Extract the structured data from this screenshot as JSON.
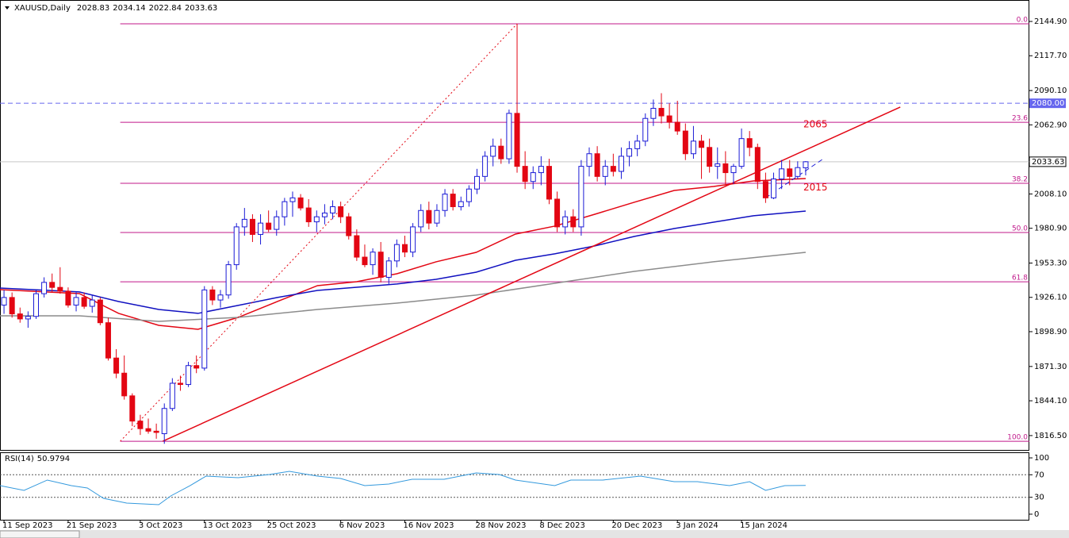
{
  "chart_data": {
    "type": "candlestick",
    "symbol": "XAUUSD,Daily",
    "up_color": "#1a1ad6",
    "down_color": "#e30613",
    "xlim": [
      -0.5,
      127.9
    ],
    "ylim": [
      1804.5,
      2161.9
    ],
    "xticks": [
      {
        "value": 0,
        "label": "11 Sep 2023"
      },
      {
        "value": 8,
        "label": "21 Sep 2023"
      },
      {
        "value": 17,
        "label": "3 Oct 2023"
      },
      {
        "value": 25,
        "label": "13 Oct 2023"
      },
      {
        "value": 33,
        "label": "25 Oct 2023"
      },
      {
        "value": 42,
        "label": "6 Nov 2023"
      },
      {
        "value": 50,
        "label": "16 Nov 2023"
      },
      {
        "value": 59,
        "label": "28 Nov 2023"
      },
      {
        "value": 67,
        "label": "8 Dec 2023"
      },
      {
        "value": 76,
        "label": "20 Dec 2023"
      },
      {
        "value": 84,
        "label": "3 Jan 2024"
      },
      {
        "value": 92,
        "label": "15 Jan 2024"
      }
    ],
    "yticks": [
      {
        "value": 2144.9,
        "label": "2144.90"
      },
      {
        "value": 2117.7,
        "label": "2117.70"
      },
      {
        "value": 2090.1,
        "label": "2090.10"
      },
      {
        "value": 2062.9,
        "label": "2062.90"
      },
      {
        "value": 2008.1,
        "label": "2008.10"
      },
      {
        "value": 1980.9,
        "label": "1980.90"
      },
      {
        "value": 1953.3,
        "label": "1953.30"
      },
      {
        "value": 1926.1,
        "label": "1926.10"
      },
      {
        "value": 1898.9,
        "label": "1898.90"
      },
      {
        "value": 1871.3,
        "label": "1871.30"
      },
      {
        "value": 1844.1,
        "label": "1844.10"
      },
      {
        "value": 1816.5,
        "label": "1816.50"
      }
    ],
    "candles": [
      [
        1920,
        1932,
        1913,
        1926
      ],
      [
        1926,
        1930,
        1910,
        1913
      ],
      [
        1913,
        1918,
        1906,
        1909
      ],
      [
        1909,
        1915,
        1902,
        1911
      ],
      [
        1911,
        1932,
        1909,
        1929
      ],
      [
        1929,
        1942,
        1926,
        1938
      ],
      [
        1938,
        1945,
        1930,
        1934
      ],
      [
        1934,
        1950,
        1929,
        1931
      ],
      [
        1931,
        1934,
        1918,
        1920
      ],
      [
        1920,
        1930,
        1915,
        1926
      ],
      [
        1926,
        1930,
        1917,
        1919
      ],
      [
        1919,
        1928,
        1914,
        1924
      ],
      [
        1924,
        1926,
        1904,
        1906
      ],
      [
        1906,
        1910,
        1876,
        1878
      ],
      [
        1878,
        1885,
        1862,
        1866
      ],
      [
        1866,
        1880,
        1845,
        1848
      ],
      [
        1848,
        1850,
        1824,
        1828
      ],
      [
        1828,
        1833,
        1817,
        1822
      ],
      [
        1822,
        1830,
        1818,
        1820
      ],
      [
        1820,
        1826,
        1814,
        1819
      ],
      [
        1818,
        1842,
        1810,
        1838
      ],
      [
        1838,
        1862,
        1836,
        1858
      ],
      [
        1858,
        1864,
        1852,
        1857
      ],
      [
        1857,
        1875,
        1855,
        1872
      ],
      [
        1872,
        1880,
        1866,
        1870
      ],
      [
        1870,
        1935,
        1868,
        1932
      ],
      [
        1932,
        1935,
        1920,
        1924
      ],
      [
        1924,
        1932,
        1918,
        1928
      ],
      [
        1928,
        1955,
        1925,
        1952
      ],
      [
        1952,
        1985,
        1948,
        1982
      ],
      [
        1982,
        1997,
        1975,
        1988
      ],
      [
        1988,
        1992,
        1970,
        1976
      ],
      [
        1976,
        1992,
        1968,
        1985
      ],
      [
        1985,
        1995,
        1978,
        1980
      ],
      [
        1980,
        1995,
        1975,
        1990
      ],
      [
        1990,
        2005,
        1983,
        2002
      ],
      [
        2002,
        2010,
        1990,
        2005
      ],
      [
        2005,
        2008,
        1995,
        1997
      ],
      [
        1997,
        2004,
        1982,
        1986
      ],
      [
        1986,
        1995,
        1978,
        1990
      ],
      [
        1990,
        2000,
        1984,
        1993
      ],
      [
        1993,
        2003,
        1988,
        1998
      ],
      [
        1998,
        2002,
        1985,
        1990
      ],
      [
        1990,
        1993,
        1972,
        1975
      ],
      [
        1975,
        1980,
        1955,
        1958
      ],
      [
        1958,
        1968,
        1950,
        1952
      ],
      [
        1952,
        1965,
        1944,
        1962
      ],
      [
        1962,
        1970,
        1938,
        1942
      ],
      [
        1942,
        1958,
        1936,
        1955
      ],
      [
        1955,
        1972,
        1950,
        1968
      ],
      [
        1968,
        1975,
        1958,
        1962
      ],
      [
        1962,
        1985,
        1958,
        1982
      ],
      [
        1982,
        2000,
        1978,
        1995
      ],
      [
        1995,
        2002,
        1980,
        1985
      ],
      [
        1985,
        2000,
        1982,
        1995
      ],
      [
        1995,
        2012,
        1990,
        2008
      ],
      [
        2008,
        2012,
        1995,
        1998
      ],
      [
        1998,
        2006,
        1995,
        2002
      ],
      [
        2002,
        2015,
        1998,
        2012
      ],
      [
        2012,
        2028,
        2008,
        2022
      ],
      [
        2022,
        2042,
        2018,
        2038
      ],
      [
        2038,
        2052,
        2030,
        2046
      ],
      [
        2046,
        2052,
        2032,
        2036
      ],
      [
        2036,
        2075,
        2032,
        2072
      ],
      [
        2072,
        2143,
        2025,
        2030
      ],
      [
        2030,
        2042,
        2012,
        2018
      ],
      [
        2018,
        2030,
        2012,
        2025
      ],
      [
        2025,
        2038,
        2015,
        2030
      ],
      [
        2030,
        2036,
        2000,
        2004
      ],
      [
        2004,
        2010,
        1978,
        1982
      ],
      [
        1982,
        1995,
        1976,
        1990
      ],
      [
        1990,
        1996,
        1978,
        1982
      ],
      [
        1982,
        2035,
        1975,
        2030
      ],
      [
        2030,
        2045,
        2022,
        2040
      ],
      [
        2040,
        2046,
        2018,
        2022
      ],
      [
        2022,
        2035,
        2015,
        2030
      ],
      [
        2030,
        2040,
        2022,
        2026
      ],
      [
        2026,
        2045,
        2020,
        2038
      ],
      [
        2038,
        2050,
        2030,
        2044
      ],
      [
        2044,
        2055,
        2038,
        2050
      ],
      [
        2050,
        2072,
        2046,
        2068
      ],
      [
        2068,
        2083,
        2062,
        2076
      ],
      [
        2076,
        2088,
        2064,
        2070
      ],
      [
        2070,
        2080,
        2060,
        2065
      ],
      [
        2065,
        2082,
        2055,
        2058
      ],
      [
        2058,
        2064,
        2035,
        2040
      ],
      [
        2040,
        2062,
        2036,
        2050
      ],
      [
        2050,
        2055,
        2020,
        2045
      ],
      [
        2045,
        2052,
        2025,
        2030
      ],
      [
        2030,
        2045,
        2020,
        2032
      ],
      [
        2032,
        2042,
        2015,
        2025
      ],
      [
        2025,
        2032,
        2016,
        2030
      ],
      [
        2030,
        2060,
        2028,
        2052
      ],
      [
        2052,
        2058,
        2038,
        2045
      ],
      [
        2045,
        2048,
        2012,
        2018
      ],
      [
        2018,
        2025,
        2001,
        2005
      ],
      [
        2005,
        2025,
        2004,
        2020
      ],
      [
        2020,
        2035,
        2012,
        2028
      ],
      [
        2028,
        2035,
        2015,
        2022
      ],
      [
        2022,
        2034,
        2020,
        2029
      ],
      [
        2028.83,
        2034.14,
        2022.84,
        2033.63
      ]
    ],
    "ma_lines": [
      {
        "color": "#e30613",
        "x": [
          -0.5,
          9.4,
          14.3,
          19.3,
          24.2,
          29.2,
          34.1,
          39.1,
          44,
          49,
          53.9,
          58.9,
          63.8,
          68.7,
          73.7,
          78.6,
          83.6,
          88.5,
          93.5,
          100
        ],
        "values": [
          1932.2,
          1929.1,
          1913.4,
          1903.9,
          1900.8,
          1910.2,
          1922.8,
          1935.4,
          1938.5,
          1944.8,
          1954.3,
          1961.8,
          1976.3,
          1982.6,
          1992.0,
          2001.5,
          2010.9,
          2014.0,
          2018.4,
          2020.3
        ]
      },
      {
        "color": "#1010c0",
        "x": [
          -0.5,
          9.4,
          14.3,
          19.3,
          24.2,
          29.2,
          34.1,
          39.1,
          44,
          49,
          53.9,
          58.9,
          63.8,
          68.7,
          73.7,
          78.6,
          83.6,
          88.5,
          93.5,
          100
        ],
        "values": [
          1933.5,
          1930.4,
          1922.8,
          1916.5,
          1913.4,
          1919.7,
          1926.0,
          1931.6,
          1934.1,
          1936.7,
          1940.4,
          1946.1,
          1955.5,
          1960.6,
          1966.9,
          1974.4,
          1980.7,
          1985.7,
          1990.8,
          1994.5
        ]
      },
      {
        "color": "#8c8c8c",
        "x": [
          -0.5,
          9.4,
          19.3,
          29.2,
          39.1,
          49,
          58.9,
          68.7,
          78.6,
          88.5,
          100
        ],
        "values": [
          1911.5,
          1911.5,
          1907.1,
          1910.2,
          1916.5,
          1921.5,
          1927.9,
          1937.3,
          1946.7,
          1954.3,
          1961.8
        ]
      }
    ],
    "trendlines": [
      {
        "color": "#e30613",
        "style": "solid",
        "x": [
          19.8,
          111.8
        ],
        "values": [
          1812,
          2077
        ]
      },
      {
        "color": "#e30613",
        "style": "dotted",
        "x": [
          14.5,
          64
        ],
        "values": [
          1812,
          2143
        ]
      },
      {
        "color": "#1a1ad6",
        "style": "dashed",
        "x": [
          95,
          102.2
        ],
        "values": [
          2005,
          2036
        ]
      }
    ],
    "hlines": [
      {
        "value": 2080,
        "label": "2080.00",
        "color": "#6666ee"
      }
    ],
    "fib": {
      "color": "#c0188a",
      "start": 14.5,
      "high": 2143,
      "low": 1812,
      "levels": [
        {
          "value": 0,
          "label": "0.0"
        },
        23.6,
        38.2,
        {
          "value": 50,
          "label": "50.0"
        },
        61.8,
        {
          "value": 100,
          "label": "100.0"
        }
      ]
    },
    "annotations": [
      {
        "value": 2065,
        "color": "#e30613"
      },
      {
        "value": 2015,
        "color": "#e30613"
      }
    ],
    "rsi": {
      "title": "RSI(14)",
      "color": "#3399dd",
      "ylim": [
        -9.9,
        109.9
      ],
      "yticks": [
        100,
        70,
        30,
        0
      ],
      "dotted_levels": [
        70,
        30
      ],
      "x": [
        -0.5,
        2.5,
        5.4,
        8.4,
        10.4,
        12.4,
        15.3,
        19.3,
        20.8,
        23.2,
        25.2,
        29.2,
        33.1,
        35.6,
        39.1,
        42,
        45,
        48,
        50.9,
        54.9,
        58.9,
        61.8,
        63.8,
        68.7,
        70.7,
        74.7,
        79.4,
        83.6,
        86.5,
        90.5,
        93,
        95,
        97.4,
        100
      ],
      "values": [
        50.7,
        42.3,
        60.6,
        50.7,
        46.5,
        28.2,
        19.7,
        16.9,
        32.4,
        50.7,
        67.6,
        64.8,
        70.4,
        76.1,
        67.6,
        63.4,
        50.7,
        53.5,
        62,
        62,
        73.2,
        70.4,
        60.6,
        50.7,
        60.6,
        60.6,
        67.6,
        57.7,
        57.7,
        50.7,
        57.7,
        42.3,
        50.7,
        50.9794
      ]
    }
  }
}
